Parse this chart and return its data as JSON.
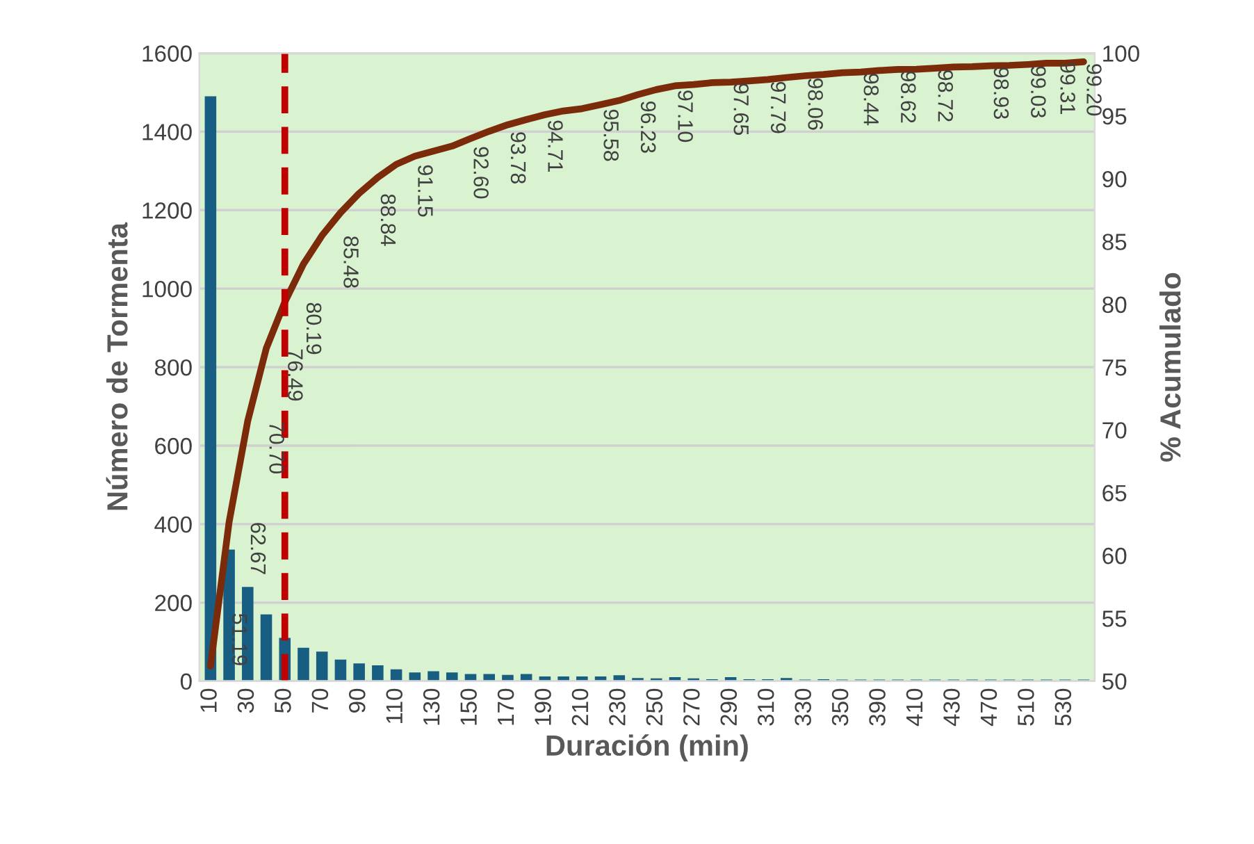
{
  "chart_data": {
    "type": "bar",
    "xlabel": "Duración (min)",
    "ylabel": "Número de Tormenta",
    "y2label": "% Acumulado",
    "categories": [
      "10",
      null,
      "30",
      null,
      "50",
      null,
      "70",
      null,
      "90",
      null,
      "110",
      null,
      "130",
      null,
      "150",
      null,
      "170",
      null,
      "190",
      null,
      "210",
      null,
      "230",
      null,
      "250",
      null,
      "270",
      null,
      "290",
      null,
      "310",
      null,
      "330",
      null,
      "350",
      null,
      "390",
      null,
      "410",
      null,
      "430",
      null,
      "470",
      null,
      "510",
      null,
      "530",
      null
    ],
    "series": [
      {
        "color": "#175e82",
        "values": [
          1490,
          335,
          240,
          170,
          110,
          85,
          75,
          55,
          45,
          40,
          30,
          22,
          25,
          22,
          18,
          18,
          16,
          18,
          12,
          12,
          12,
          12,
          15,
          8,
          7,
          10,
          7,
          5,
          10,
          5,
          5,
          8,
          4,
          5,
          4,
          4,
          4,
          4,
          4,
          4,
          4,
          4,
          4,
          4,
          4,
          4,
          4,
          4
        ]
      },
      {
        "type": "line",
        "axis": "y2",
        "color": "#7b2a0a",
        "values": [
          51.19,
          62.67,
          70.7,
          76.49,
          80.19,
          83.2,
          85.48,
          87.3,
          88.84,
          90.1,
          91.15,
          91.8,
          92.2,
          92.6,
          93.2,
          93.78,
          94.3,
          94.71,
          95.1,
          95.4,
          95.58,
          95.9,
          96.23,
          96.7,
          97.1,
          97.4,
          97.5,
          97.65,
          97.7,
          97.79,
          97.9,
          98.06,
          98.2,
          98.3,
          98.44,
          98.5,
          98.62,
          98.7,
          98.72,
          98.8,
          98.9,
          98.93,
          99.0,
          99.03,
          99.1,
          99.2,
          99.2,
          99.31
        ],
        "value_labels": [
          "51.19",
          "62.67",
          "70.70",
          "76.49",
          "80.19",
          null,
          "85.48",
          null,
          "88.84",
          null,
          "91.15",
          null,
          null,
          "92.60",
          null,
          "93.78",
          null,
          "94.71",
          null,
          null,
          "95.58",
          null,
          "96.23",
          null,
          "97.10",
          null,
          null,
          "97.65",
          null,
          "97.79",
          null,
          "98.06",
          null,
          null,
          "98.44",
          null,
          "98.62",
          null,
          "98.72",
          null,
          null,
          "98.93",
          null,
          "99.03",
          null,
          null,
          "99.20",
          "99.31"
        ]
      }
    ],
    "ylim": [
      0,
      1600
    ],
    "yticks": [
      0,
      200,
      400,
      600,
      800,
      1000,
      1200,
      1400,
      1600
    ],
    "y2lim": [
      50,
      100
    ],
    "y2ticks": [
      50,
      55,
      60,
      65,
      70,
      75,
      80,
      85,
      90,
      95,
      100
    ],
    "ref_lines": [
      {
        "axis": "x",
        "value": "50",
        "color": "#c00000",
        "line_style": "dashed"
      }
    ],
    "grid": "y",
    "legend": false
  }
}
